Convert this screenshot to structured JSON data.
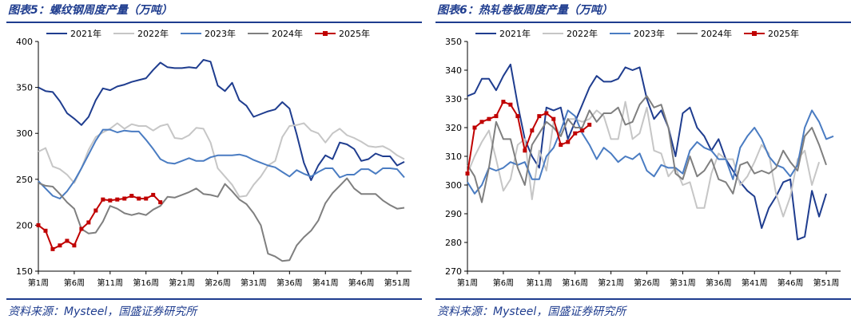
{
  "chart_data": [
    {
      "type": "line",
      "title": "图表5：螺纹钢周度产量（万吨）",
      "source": "资料来源：Mysteel，国盛证券研究所",
      "ylim": [
        150,
        400
      ],
      "yticks": [
        150,
        200,
        250,
        300,
        350,
        400
      ],
      "xlim": [
        1,
        53
      ],
      "xticks": [
        1,
        6,
        11,
        16,
        21,
        26,
        31,
        36,
        41,
        46,
        51
      ],
      "xtick_labels": [
        "第1周",
        "第6周",
        "第11周",
        "第16周",
        "第21周",
        "第26周",
        "第31周",
        "第36周",
        "第41周",
        "第46周",
        "第51周"
      ],
      "legend_position": "top",
      "series": [
        {
          "name": "2021年",
          "color": "#1f3d8f",
          "marker": "none",
          "values": [
            350,
            346,
            345,
            335,
            322,
            316,
            309,
            318,
            336,
            349,
            347,
            351,
            353,
            356,
            358,
            360,
            369,
            377,
            372,
            371,
            371,
            372,
            371,
            380,
            378,
            352,
            346,
            355,
            336,
            330,
            318,
            321,
            324,
            326,
            334,
            327,
            299,
            268,
            249,
            265,
            276,
            272,
            290,
            288,
            283,
            270,
            272,
            278,
            275,
            275,
            265,
            269
          ]
        },
        {
          "name": "2022年",
          "color": "#c6c6c6",
          "marker": "none",
          "values": [
            280,
            284,
            264,
            261,
            255,
            246,
            262,
            282,
            296,
            301,
            305,
            311,
            305,
            310,
            308,
            308,
            303,
            308,
            310,
            295,
            294,
            298,
            306,
            305,
            290,
            262,
            253,
            244,
            231,
            232,
            244,
            253,
            265,
            270,
            296,
            308,
            309,
            311,
            303,
            300,
            290,
            300,
            305,
            298,
            295,
            291,
            286,
            285,
            286,
            282,
            276,
            272
          ]
        },
        {
          "name": "2023年",
          "color": "#4a7cc2",
          "marker": "none",
          "values": [
            248,
            240,
            232,
            229,
            237,
            248,
            262,
            277,
            292,
            304,
            304,
            301,
            303,
            302,
            302,
            293,
            283,
            272,
            268,
            267,
            270,
            273,
            270,
            270,
            274,
            276,
            276,
            276,
            277,
            275,
            271,
            268,
            265,
            263,
            258,
            253,
            260,
            256,
            253,
            258,
            262,
            262,
            252,
            255,
            255,
            261,
            261,
            256,
            262,
            262,
            261,
            252
          ]
        },
        {
          "name": "2024年",
          "color": "#7f7f7f",
          "marker": "none",
          "values": [
            246,
            243,
            242,
            234,
            225,
            218,
            196,
            191,
            192,
            204,
            221,
            218,
            213,
            211,
            213,
            211,
            217,
            221,
            231,
            230,
            233,
            236,
            240,
            234,
            233,
            231,
            245,
            237,
            228,
            223,
            213,
            200,
            169,
            166,
            161,
            162,
            178,
            187,
            194,
            205,
            224,
            235,
            243,
            251,
            240,
            234,
            234,
            234,
            227,
            222,
            218,
            219
          ]
        },
        {
          "name": "2025年",
          "color": "#c00000",
          "marker": "square",
          "values": [
            200,
            194,
            174,
            178,
            183,
            178,
            196,
            203,
            216,
            228,
            227,
            228,
            229,
            232,
            229,
            229,
            233,
            225
          ]
        }
      ]
    },
    {
      "type": "line",
      "title": "图表6：热轧卷板周度产量（万吨）",
      "source": "资料来源：Mysteel，国盛证券研究所",
      "ylim": [
        270,
        350
      ],
      "yticks": [
        270,
        280,
        290,
        300,
        310,
        320,
        330,
        340,
        350
      ],
      "xlim": [
        1,
        53
      ],
      "xticks": [
        1,
        6,
        11,
        16,
        21,
        26,
        31,
        36,
        41,
        46,
        51
      ],
      "xtick_labels": [
        "第1周",
        "第6周",
        "第11周",
        "第16周",
        "第21周",
        "第26周",
        "第31周",
        "第36周",
        "第41周",
        "第46周",
        "第51周"
      ],
      "legend_position": "top",
      "series": [
        {
          "name": "2021年",
          "color": "#1f3d8f",
          "marker": "none",
          "values": [
            331,
            332,
            337,
            337,
            333,
            338,
            342,
            328,
            316,
            310,
            306,
            327,
            326,
            327,
            316,
            322,
            328,
            334,
            338,
            336,
            336,
            337,
            341,
            340,
            341,
            330,
            323,
            326,
            320,
            310,
            325,
            327,
            320,
            317,
            312,
            316,
            309,
            305,
            301,
            298,
            296,
            285,
            292,
            296,
            301,
            302,
            281,
            282,
            298,
            289,
            297
          ]
        },
        {
          "name": "2022年",
          "color": "#c6c6c6",
          "marker": "none",
          "values": [
            304,
            310,
            315,
            319,
            309,
            298,
            302,
            314,
            316,
            295,
            312,
            305,
            322,
            317,
            323,
            323,
            322,
            323,
            326,
            324,
            316,
            316,
            329,
            316,
            318,
            327,
            312,
            311,
            303,
            306,
            300,
            301,
            292,
            292,
            304,
            311,
            309,
            309,
            300,
            303,
            308,
            314,
            311,
            297,
            289,
            296,
            309,
            312,
            300,
            308
          ]
        },
        {
          "name": "2023年",
          "color": "#4a7cc2",
          "marker": "none",
          "values": [
            301,
            297,
            300,
            306,
            305,
            306,
            308,
            307,
            308,
            302,
            302,
            310,
            313,
            319,
            326,
            324,
            318,
            314,
            309,
            313,
            311,
            308,
            310,
            309,
            311,
            305,
            303,
            307,
            306,
            306,
            304,
            312,
            315,
            313,
            312,
            309,
            309,
            302,
            313,
            317,
            320,
            316,
            310,
            307,
            306,
            303,
            307,
            320,
            326,
            322,
            316,
            317
          ]
        },
        {
          "name": "2024年",
          "color": "#7f7f7f",
          "marker": "none",
          "values": [
            307,
            303,
            294,
            306,
            322,
            316,
            316,
            306,
            300,
            314,
            318,
            322,
            320,
            317,
            323,
            320,
            320,
            326,
            322,
            325,
            325,
            327,
            321,
            322,
            328,
            331,
            327,
            328,
            320,
            304,
            302,
            310,
            303,
            305,
            309,
            302,
            301,
            297,
            307,
            308,
            304,
            305,
            304,
            306,
            312,
            308,
            305,
            317,
            320,
            314,
            307
          ]
        },
        {
          "name": "2025年",
          "color": "#c00000",
          "marker": "square",
          "values": [
            304,
            320,
            322,
            323,
            324,
            329,
            328,
            324,
            312,
            319,
            324,
            325,
            323,
            314,
            315,
            318,
            319,
            321
          ]
        }
      ]
    }
  ]
}
